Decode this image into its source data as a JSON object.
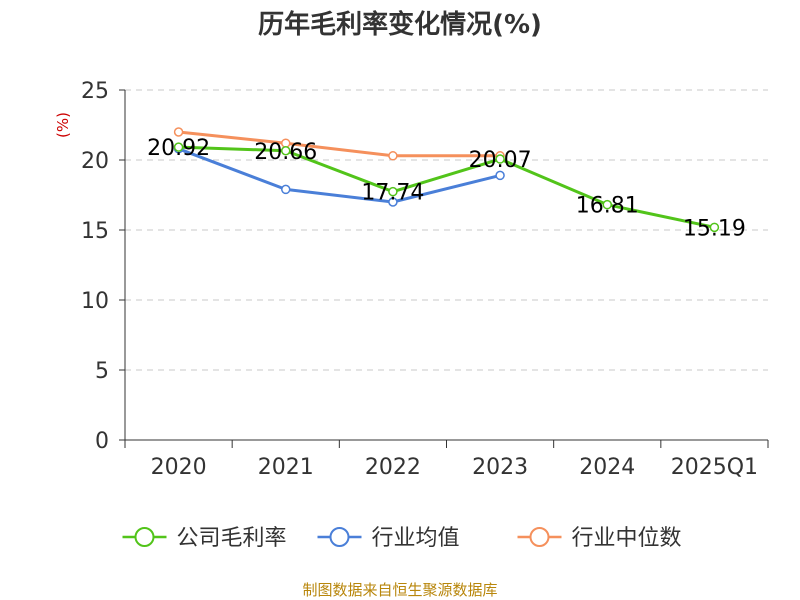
{
  "chart_data": {
    "type": "line",
    "title": "历年毛利率变化情况(%)",
    "ylabel": "(%)",
    "xlabel": "",
    "categories": [
      "2020",
      "2021",
      "2022",
      "2023",
      "2024",
      "2025Q1"
    ],
    "ylim": [
      0,
      25
    ],
    "yticks": [
      0,
      5,
      10,
      15,
      20,
      25
    ],
    "grid": true,
    "legend_position": "bottom",
    "series": [
      {
        "name": "公司毛利率",
        "color": "#52c41a",
        "values": [
          20.92,
          20.66,
          17.74,
          20.07,
          16.81,
          15.19
        ],
        "labels": [
          "20.92",
          "20.66",
          "17.74",
          "20.07",
          "16.81",
          "15.19"
        ]
      },
      {
        "name": "行业均值",
        "color": "#4a7fd8",
        "values": [
          20.8,
          17.9,
          17.0,
          18.9,
          null,
          null
        ],
        "labels": []
      },
      {
        "name": "行业中位数",
        "color": "#f5905c",
        "values": [
          22.0,
          21.2,
          20.3,
          20.3,
          null,
          null
        ],
        "labels": []
      }
    ],
    "source": "制图数据来自恒生聚源数据库"
  }
}
